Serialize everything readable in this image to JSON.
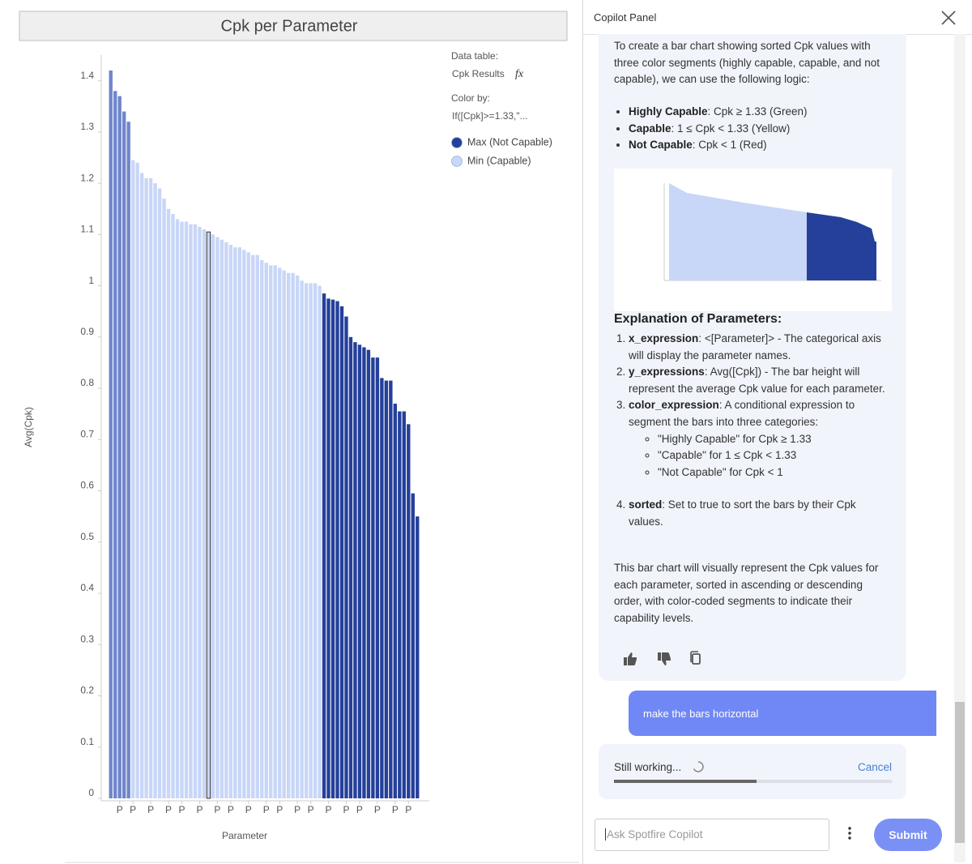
{
  "chart_data": {
    "type": "bar",
    "title": "Cpk per Parameter",
    "x_label": "Parameter",
    "y_label": "Avg(Cpk)",
    "categories": [
      null,
      null,
      "P",
      null,
      null,
      "P",
      null,
      null,
      null,
      "P",
      null,
      null,
      null,
      "P",
      null,
      null,
      "P",
      null,
      null,
      null,
      "P",
      null,
      null,
      null,
      "P",
      null,
      null,
      "P",
      null,
      null,
      null,
      "P",
      null,
      null,
      null,
      "P",
      null,
      null,
      "P",
      null,
      null,
      null,
      "P",
      null,
      null,
      "P",
      null,
      null,
      null,
      "P",
      null,
      null,
      null,
      "P",
      null,
      null,
      "P",
      null,
      null,
      null,
      "P",
      null,
      null,
      null,
      "P",
      null,
      null,
      "P",
      null,
      null
    ],
    "values": [
      1.42,
      1.38,
      1.37,
      1.34,
      1.32,
      1.245,
      1.24,
      1.22,
      1.21,
      1.21,
      1.2,
      1.19,
      1.17,
      1.15,
      1.14,
      1.13,
      1.125,
      1.125,
      1.12,
      1.12,
      1.115,
      1.11,
      1.105,
      1.1,
      1.095,
      1.09,
      1.085,
      1.08,
      1.075,
      1.075,
      1.07,
      1.065,
      1.06,
      1.06,
      1.05,
      1.045,
      1.04,
      1.04,
      1.035,
      1.03,
      1.025,
      1.025,
      1.02,
      1.01,
      1.005,
      1.005,
      1.005,
      1.0,
      0.985,
      0.975,
      0.973,
      0.97,
      0.96,
      0.94,
      0.9,
      0.89,
      0.885,
      0.88,
      0.875,
      0.86,
      0.86,
      0.82,
      0.815,
      0.815,
      0.77,
      0.755,
      0.755,
      0.73,
      0.595,
      0.55
    ],
    "colors": [
      "#6f86cc",
      "#6f86cc",
      "#6f86cc",
      "#6f86cc",
      "#6f86cc",
      "#c8d6f7",
      "#c8d6f7",
      "#c8d6f7",
      "#c8d6f7",
      "#c8d6f7",
      "#c8d6f7",
      "#c8d6f7",
      "#c8d6f7",
      "#c8d6f7",
      "#c8d6f7",
      "#c8d6f7",
      "#c8d6f7",
      "#c8d6f7",
      "#c8d6f7",
      "#c8d6f7",
      "#c8d6f7",
      "#c8d6f7",
      "#c8d6f7",
      "#c8d6f7",
      "#c8d6f7",
      "#c8d6f7",
      "#c8d6f7",
      "#c8d6f7",
      "#c8d6f7",
      "#c8d6f7",
      "#c8d6f7",
      "#c8d6f7",
      "#c8d6f7",
      "#c8d6f7",
      "#c8d6f7",
      "#c8d6f7",
      "#c8d6f7",
      "#c8d6f7",
      "#c8d6f7",
      "#c8d6f7",
      "#c8d6f7",
      "#c8d6f7",
      "#c8d6f7",
      "#c8d6f7",
      "#c8d6f7",
      "#c8d6f7",
      "#c8d6f7",
      "#c8d6f7",
      "#24409a",
      "#24409a",
      "#24409a",
      "#24409a",
      "#24409a",
      "#24409a",
      "#24409a",
      "#24409a",
      "#24409a",
      "#24409a",
      "#24409a",
      "#24409a",
      "#24409a",
      "#24409a",
      "#24409a",
      "#24409a",
      "#24409a",
      "#24409a",
      "#24409a",
      "#24409a",
      "#24409a",
      "#24409a"
    ],
    "selected_index": 22,
    "ylim": [
      0,
      1.45
    ],
    "yticks": [
      0,
      0.1,
      0.2,
      0.3,
      0.4,
      0.5,
      0.6,
      0.7,
      0.8,
      0.9,
      1,
      1.1,
      1.2,
      1.3,
      1.4
    ],
    "legend": {
      "data_table_label": "Data table:",
      "data_table": "Cpk Results",
      "data_table_icon": "fx",
      "color_by_label": "Color by:",
      "color_by": "If([Cpk]>=1.33,\"...",
      "series": [
        {
          "name": "Max (Not Capable)",
          "color": "#24409a"
        },
        {
          "name": "Min (Capable)",
          "color": "#c8d6f7"
        }
      ]
    }
  },
  "panel": {
    "title": "Copilot Panel",
    "intro": "To create a bar chart showing sorted Cpk values with three color segments (highly capable, capable, and not capable), we can use the following logic:",
    "bullets": [
      {
        "label": "Highly Capable",
        "text": ": Cpk ≥ 1.33 (Green)"
      },
      {
        "label": "Capable",
        "text": ": 1 ≤ Cpk < 1.33 (Yellow)"
      },
      {
        "label": "Not Capable",
        "text": ": Cpk < 1 (Red)"
      }
    ],
    "explanation_heading": "Explanation of Parameters:",
    "steps": [
      {
        "label": "x_expression",
        "text": ": <[Parameter]> - The categorical axis will display the parameter names."
      },
      {
        "label": "y_expressions",
        "text": ": Avg([Cpk]) - The bar height will represent the average Cpk value for each parameter."
      },
      {
        "label": "color_expression",
        "text": ": A conditional expression to segment the bars into three categories:",
        "sub": [
          "\"Highly Capable\" for Cpk ≥ 1.33",
          "\"Capable\" for 1 ≤ Cpk < 1.33",
          "\"Not Capable\" for Cpk < 1"
        ]
      },
      {
        "label": "sorted",
        "text": ": Set to true to sort the bars by their Cpk values."
      }
    ],
    "summary": "This bar chart will visually represent the Cpk values for each parameter, sorted in ascending or descending order, with color-coded segments to indicate their capability levels.",
    "user_message": "make the bars horizontal",
    "status": "Still working...",
    "cancel": "Cancel",
    "input_placeholder": "Ask Spotfire Copilot",
    "submit": "Submit"
  }
}
